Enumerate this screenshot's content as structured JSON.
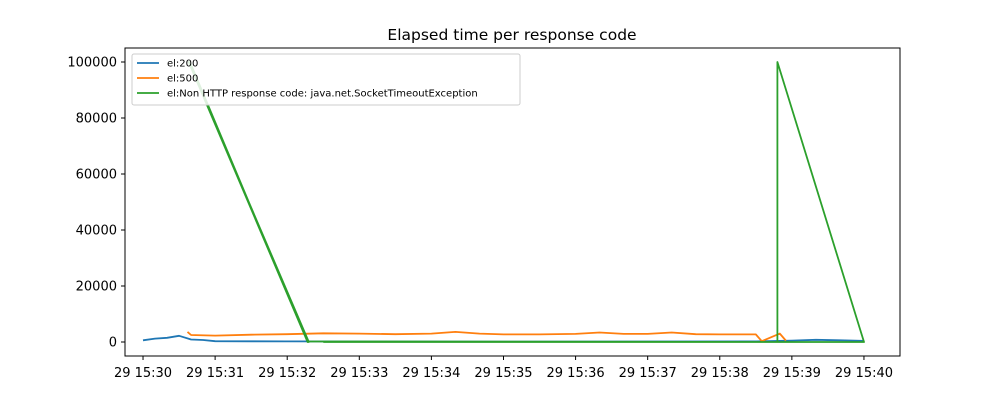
{
  "chart_data": {
    "type": "line",
    "title": "Elapsed time per response code",
    "xlabel": "",
    "ylabel": "",
    "x_type": "time",
    "x_ticks": [
      {
        "t": "15:30",
        "label": "29 15:30"
      },
      {
        "t": "15:31",
        "label": "29 15:31"
      },
      {
        "t": "15:32",
        "label": "29 15:32"
      },
      {
        "t": "15:33",
        "label": "29 15:33"
      },
      {
        "t": "15:34",
        "label": "29 15:34"
      },
      {
        "t": "15:35",
        "label": "29 15:35"
      },
      {
        "t": "15:36",
        "label": "29 15:36"
      },
      {
        "t": "15:37",
        "label": "29 15:37"
      },
      {
        "t": "15:38",
        "label": "29 15:38"
      },
      {
        "t": "15:39",
        "label": "29 15:39"
      },
      {
        "t": "15:40",
        "label": "29 15:40"
      }
    ],
    "y_ticks": [
      0,
      20000,
      40000,
      60000,
      80000,
      100000
    ],
    "ylim": [
      -5000,
      105000
    ],
    "xlim": [
      "15:29:45",
      "15:40:30"
    ],
    "grid": false,
    "legend_position": "top-left",
    "series": [
      {
        "name": "el:200",
        "color": "#1f77b4",
        "points": [
          [
            "15:30:00",
            600
          ],
          [
            "15:30:10",
            1200
          ],
          [
            "15:30:20",
            1500
          ],
          [
            "15:30:30",
            2200
          ],
          [
            "15:30:40",
            900
          ],
          [
            "15:30:50",
            700
          ],
          [
            "15:31:00",
            300
          ],
          [
            "15:31:30",
            250
          ],
          [
            "15:32:00",
            200
          ],
          [
            "15:35:00",
            150
          ],
          [
            "15:38:30",
            200
          ],
          [
            "15:38:40",
            300
          ],
          [
            "15:39:00",
            500
          ],
          [
            "15:39:20",
            800
          ],
          [
            "15:39:40",
            600
          ],
          [
            "15:40:00",
            400
          ]
        ]
      },
      {
        "name": "el:500",
        "color": "#ff7f0e",
        "points": [
          [
            "15:30:37",
            3600
          ],
          [
            "15:30:40",
            2500
          ],
          [
            "15:31:00",
            2300
          ],
          [
            "15:31:30",
            2600
          ],
          [
            "15:32:00",
            2800
          ],
          [
            "15:32:30",
            3100
          ],
          [
            "15:33:00",
            3000
          ],
          [
            "15:33:30",
            2800
          ],
          [
            "15:34:00",
            3000
          ],
          [
            "15:34:20",
            3600
          ],
          [
            "15:34:40",
            3000
          ],
          [
            "15:35:00",
            2700
          ],
          [
            "15:35:30",
            2700
          ],
          [
            "15:36:00",
            2900
          ],
          [
            "15:36:20",
            3400
          ],
          [
            "15:36:40",
            2900
          ],
          [
            "15:37:00",
            2900
          ],
          [
            "15:37:20",
            3400
          ],
          [
            "15:37:40",
            2800
          ],
          [
            "15:38:00",
            2700
          ],
          [
            "15:38:30",
            2700
          ],
          [
            "15:38:35",
            300
          ],
          [
            "15:38:50",
            3000
          ],
          [
            "15:38:55",
            500
          ]
        ]
      },
      {
        "name": "el:Non HTTP response code: java.net.SocketTimeoutException",
        "color": "#2ca02c",
        "points": [
          [
            "15:30:38",
            100000
          ],
          [
            "15:32:17",
            0
          ],
          [
            "15:32:18",
            0
          ],
          [
            "15:30:38",
            100000
          ],
          [
            "15:30:39",
            100000
          ],
          [
            "15:32:17",
            0
          ],
          [
            "15:32:18",
            200
          ],
          [
            "15:38:48",
            0
          ],
          [
            "15:38:48",
            100000
          ],
          [
            "15:40:00",
            0
          ],
          [
            "15:32:30",
            0
          ]
        ]
      }
    ]
  }
}
